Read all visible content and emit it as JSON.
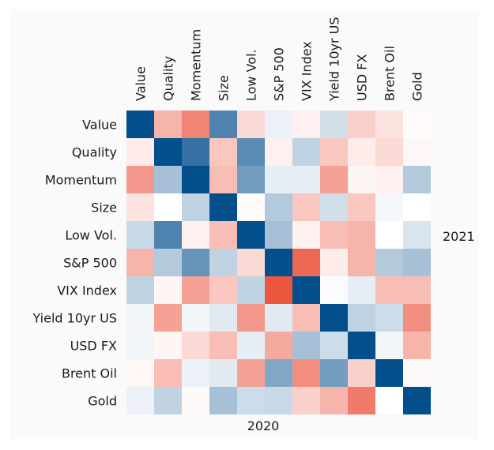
{
  "chart_data": {
    "type": "heatmap",
    "xlabel": "2020",
    "ylabel": "2021",
    "columns": [
      "Value",
      "Quality",
      "Momentum",
      "Size",
      "Low Vol.",
      "S&P 500",
      "VIX Index",
      "Yield 10yr US",
      "USD FX",
      "Brent Oil",
      "Gold"
    ],
    "rows": [
      "Value",
      "Quality",
      "Momentum",
      "Size",
      "Low Vol.",
      "S&P 500",
      "VIX Index",
      "Yield 10yr US",
      "USD FX",
      "Brent Oil",
      "Gold"
    ],
    "values": [
      [
        1.0,
        -0.4,
        -0.65,
        0.7,
        -0.2,
        0.08,
        -0.08,
        0.18,
        -0.25,
        -0.15,
        -0.02
      ],
      [
        -0.1,
        1.0,
        0.8,
        -0.3,
        0.65,
        -0.08,
        0.25,
        -0.3,
        -0.1,
        -0.2,
        -0.04
      ],
      [
        -0.55,
        0.35,
        1.0,
        -0.35,
        0.55,
        0.1,
        0.1,
        -0.5,
        -0.05,
        -0.08,
        0.3
      ],
      [
        -0.15,
        0.0,
        0.25,
        1.0,
        -0.02,
        0.3,
        -0.3,
        0.18,
        -0.3,
        0.04,
        0.0
      ],
      [
        0.22,
        0.7,
        -0.08,
        -0.35,
        1.0,
        0.35,
        -0.08,
        -0.35,
        -0.4,
        0.0,
        0.15
      ],
      [
        -0.4,
        0.3,
        0.6,
        0.25,
        -0.2,
        1.0,
        -0.8,
        -0.1,
        -0.4,
        0.3,
        0.35
      ],
      [
        0.25,
        -0.05,
        -0.5,
        -0.3,
        0.25,
        -0.9,
        1.0,
        0.02,
        0.1,
        -0.35,
        -0.35
      ],
      [
        0.05,
        -0.5,
        0.05,
        0.12,
        -0.55,
        0.12,
        -0.35,
        1.0,
        0.25,
        0.2,
        -0.6
      ],
      [
        0.05,
        -0.05,
        -0.2,
        -0.35,
        0.1,
        -0.45,
        0.35,
        0.2,
        1.0,
        0.05,
        -0.4
      ],
      [
        -0.04,
        -0.35,
        0.08,
        0.12,
        -0.5,
        0.5,
        -0.6,
        0.55,
        -0.25,
        1.0,
        -0.03
      ],
      [
        0.08,
        0.25,
        -0.03,
        0.35,
        0.2,
        0.22,
        -0.25,
        -0.4,
        -0.7,
        0.0,
        1.0
      ]
    ]
  }
}
